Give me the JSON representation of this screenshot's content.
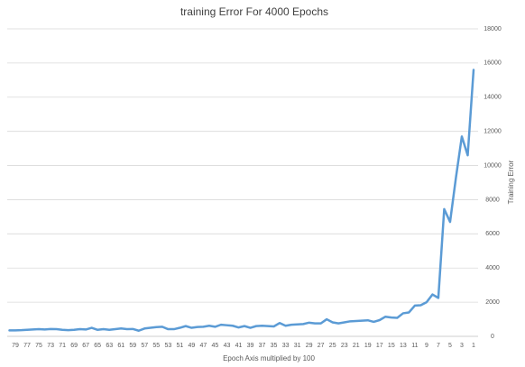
{
  "chart_data": {
    "type": "line",
    "title": "training Error For 4000 Epochs",
    "x_label": "Epoch Axis multiplied by 100",
    "y_label": "Training Error",
    "categories": [
      null,
      79,
      null,
      77,
      null,
      75,
      null,
      73,
      null,
      71,
      null,
      69,
      null,
      67,
      null,
      65,
      null,
      63,
      null,
      61,
      null,
      59,
      null,
      57,
      null,
      55,
      null,
      53,
      null,
      51,
      null,
      49,
      null,
      47,
      null,
      45,
      null,
      43,
      null,
      41,
      null,
      39,
      null,
      37,
      null,
      35,
      null,
      33,
      null,
      31,
      null,
      29,
      null,
      27,
      null,
      25,
      null,
      23,
      null,
      21,
      null,
      19,
      null,
      17,
      null,
      15,
      null,
      13,
      null,
      11,
      null,
      9,
      null,
      7,
      null,
      5,
      null,
      3,
      null,
      1
    ],
    "values": [
      350,
      350,
      360,
      380,
      400,
      420,
      400,
      430,
      420,
      380,
      360,
      380,
      420,
      400,
      500,
      380,
      420,
      380,
      420,
      460,
      420,
      430,
      330,
      460,
      500,
      540,
      560,
      420,
      420,
      500,
      600,
      500,
      550,
      560,
      620,
      560,
      680,
      650,
      620,
      520,
      600,
      500,
      600,
      620,
      600,
      580,
      780,
      620,
      680,
      700,
      720,
      800,
      760,
      760,
      1000,
      820,
      760,
      820,
      880,
      900,
      920,
      940,
      850,
      950,
      1150,
      1100,
      1080,
      1350,
      1400,
      1800,
      1820,
      2000,
      2450,
      2250,
      7450,
      6700,
      9300,
      11700,
      10600,
      15600
    ],
    "color": "#5b9bd5",
    "ylim": [
      0,
      18000
    ],
    "yticks": [
      0,
      2000,
      4000,
      6000,
      8000,
      10000,
      12000,
      14000,
      16000,
      18000
    ],
    "grid": true,
    "y_axis_side": "right"
  }
}
